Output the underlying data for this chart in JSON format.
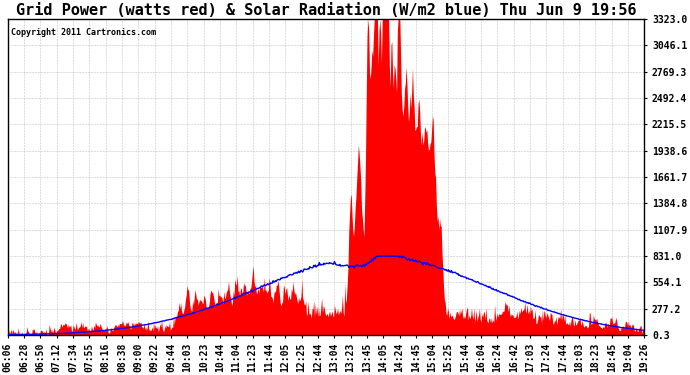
{
  "title": "Grid Power (watts red) & Solar Radiation (W/m2 blue) Thu Jun 9 19:56",
  "copyright": "Copyright 2011 Cartronics.com",
  "y_ticks": [
    0.3,
    277.2,
    554.1,
    831.0,
    1107.9,
    1384.8,
    1661.7,
    1938.6,
    2215.5,
    2492.4,
    2769.3,
    3046.1,
    3323.0
  ],
  "y_max": 3323.0,
  "y_min": 0.0,
  "x_labels": [
    "06:06",
    "06:28",
    "06:50",
    "07:12",
    "07:34",
    "07:55",
    "08:16",
    "08:38",
    "09:00",
    "09:22",
    "09:44",
    "10:03",
    "10:23",
    "10:44",
    "11:04",
    "11:23",
    "11:44",
    "12:05",
    "12:25",
    "12:44",
    "13:04",
    "13:23",
    "13:45",
    "14:05",
    "14:24",
    "14:45",
    "15:04",
    "15:25",
    "15:44",
    "16:04",
    "16:24",
    "16:42",
    "17:03",
    "17:24",
    "17:44",
    "18:03",
    "18:23",
    "18:45",
    "19:04",
    "19:26"
  ],
  "bg_color": "#ffffff",
  "plot_bg_color": "#ffffff",
  "grid_color": "#aaaaaa",
  "red_color": "#ff0000",
  "blue_color": "#0000ff",
  "title_fontsize": 11,
  "tick_fontsize": 7.0,
  "solar_peak": 831.0,
  "grid_peak": 3323.0
}
